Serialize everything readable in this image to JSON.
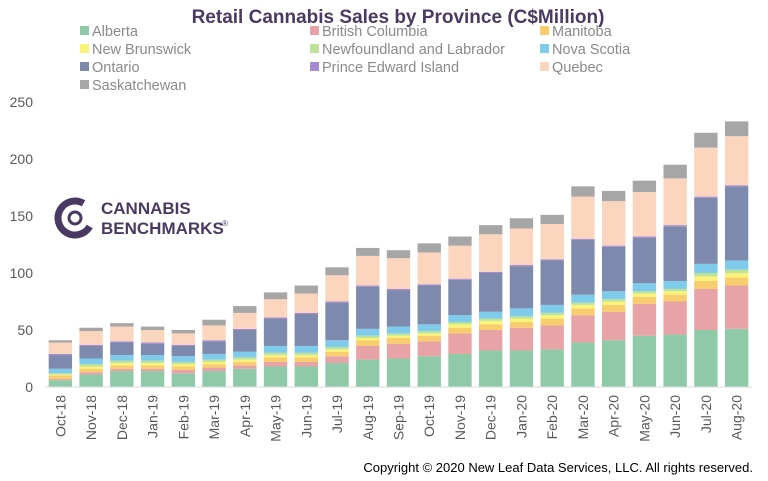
{
  "chart_data": {
    "type": "bar",
    "stacked": true,
    "title": "Retail Cannabis Sales by Province (C$Million)",
    "ylim": [
      0,
      250
    ],
    "yticks": [
      0,
      50,
      100,
      150,
      200,
      250
    ],
    "grid": false,
    "legend_position": "top",
    "categories": [
      "Oct-18",
      "Nov-18",
      "Dec-18",
      "Jan-19",
      "Feb-19",
      "Mar-19",
      "Apr-19",
      "May-19",
      "Jun-19",
      "Jul-19",
      "Aug-19",
      "Sep-19",
      "Oct-19",
      "Nov-19",
      "Dec-19",
      "Jan-20",
      "Feb-20",
      "Mar-20",
      "Apr-20",
      "May-20",
      "Jun-20",
      "Jul-20",
      "Aug-20"
    ],
    "series": [
      {
        "name": "Alberta",
        "color": "#8fcaa8",
        "values": [
          6,
          11,
          14,
          14,
          12,
          14,
          16,
          18,
          18,
          21,
          24,
          25,
          27,
          29,
          32,
          32,
          33,
          39,
          41,
          45,
          46,
          50,
          51
        ]
      },
      {
        "name": "British Columbia",
        "color": "#e8a3a6",
        "values": [
          1,
          2,
          2,
          2,
          3,
          3,
          3,
          4,
          4,
          6,
          12,
          13,
          13,
          18,
          18,
          20,
          21,
          24,
          25,
          28,
          29,
          36,
          38
        ]
      },
      {
        "name": "Manitoba",
        "color": "#f7cd6d",
        "values": [
          3,
          3,
          3,
          3,
          3,
          3,
          3,
          4,
          4,
          4,
          5,
          5,
          5,
          5,
          5,
          5,
          6,
          6,
          6,
          6,
          6,
          7,
          7
        ]
      },
      {
        "name": "New Brunswick",
        "color": "#fbf27a",
        "values": [
          1,
          2,
          2,
          2,
          2,
          2,
          2,
          2,
          2,
          2,
          2,
          2,
          2,
          3,
          3,
          3,
          3,
          3,
          3,
          3,
          3,
          4,
          4
        ]
      },
      {
        "name": "Newfoundland and Labrador",
        "color": "#bde39a",
        "values": [
          1,
          2,
          2,
          2,
          2,
          2,
          2,
          2,
          2,
          2,
          2,
          2,
          2,
          2,
          2,
          2,
          2,
          2,
          2,
          2,
          2,
          3,
          3
        ]
      },
      {
        "name": "Nova Scotia",
        "color": "#7fcbeb",
        "values": [
          4,
          5,
          5,
          5,
          5,
          5,
          5,
          6,
          6,
          6,
          6,
          6,
          6,
          6,
          6,
          7,
          7,
          7,
          7,
          7,
          7,
          8,
          8
        ]
      },
      {
        "name": "Ontario",
        "color": "#7d89ad",
        "values": [
          12,
          11,
          11,
          10,
          9,
          11,
          19,
          24,
          28,
          33,
          37,
          32,
          34,
          31,
          34,
          37,
          39,
          48,
          39,
          40,
          48,
          58,
          65
        ]
      },
      {
        "name": "Prince Edward Island",
        "color": "#a58ad0",
        "values": [
          1,
          1,
          1,
          1,
          1,
          1,
          1,
          1,
          1,
          1,
          1,
          1,
          1,
          1,
          1,
          1,
          1,
          1,
          1,
          1,
          1,
          1,
          1
        ]
      },
      {
        "name": "Quebec",
        "color": "#fbd5bd",
        "values": [
          10,
          12,
          13,
          11,
          10,
          13,
          14,
          16,
          17,
          23,
          26,
          27,
          28,
          29,
          33,
          32,
          31,
          37,
          39,
          39,
          41,
          43,
          43
        ]
      },
      {
        "name": "Saskatchewan",
        "color": "#a6a6a6",
        "values": [
          2,
          3,
          3,
          3,
          3,
          5,
          6,
          6,
          7,
          7,
          7,
          7,
          8,
          8,
          8,
          9,
          8,
          9,
          9,
          10,
          12,
          13,
          13
        ]
      }
    ]
  },
  "logo": {
    "line1": "CANNABIS",
    "line2": "BENCHMARKS",
    "mark": "®"
  },
  "copyright": "Copyright © 2020 New Leaf Data Services, LLC. All rights reserved."
}
